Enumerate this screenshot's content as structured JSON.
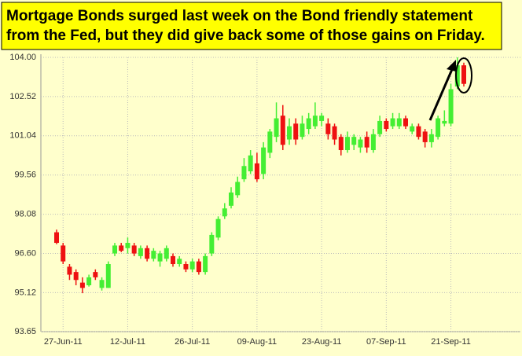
{
  "chart_data": {
    "type": "candlestick",
    "title": [
      "Mortgage Bonds surged last week on the Bond friendly statement",
      "from the Fed, but they did give back some of those gains on Friday."
    ],
    "categories": [
      null,
      "27-Jun-11",
      null,
      null,
      null,
      null,
      null,
      null,
      null,
      null,
      null,
      "12-Jul-11",
      null,
      null,
      null,
      null,
      null,
      null,
      null,
      null,
      null,
      "26-Jul-11",
      null,
      null,
      null,
      null,
      null,
      null,
      null,
      null,
      null,
      "09-Aug-11",
      null,
      null,
      null,
      null,
      null,
      null,
      null,
      null,
      null,
      "23-Aug-11",
      null,
      null,
      null,
      null,
      null,
      null,
      null,
      null,
      null,
      "07-Sep-11",
      null,
      null,
      null,
      null,
      null,
      null,
      null,
      null,
      null,
      "21-Sep-11",
      null,
      null
    ],
    "open": [
      97.4,
      96.9,
      96.1,
      95.9,
      95.5,
      95.4,
      95.9,
      95.3,
      95.3,
      96.6,
      96.9,
      96.8,
      96.9,
      96.5,
      96.8,
      96.4,
      96.3,
      96.4,
      96.5,
      96.2,
      96.2,
      96.0,
      96.3,
      95.9,
      96.6,
      97.2,
      98.0,
      98.4,
      98.8,
      99.4,
      99.7,
      100.0,
      99.6,
      100.4,
      101.0,
      101.8,
      100.9,
      101.5,
      101.0,
      101.3,
      101.4,
      101.6,
      101.5,
      101.4,
      101.0,
      100.5,
      100.7,
      100.6,
      101.0,
      100.5,
      101.1,
      101.6,
      101.4,
      101.4,
      101.7,
      101.2,
      101.4,
      101.2,
      100.8,
      101.0,
      101.5,
      101.5,
      102.9,
      103.7
    ],
    "high": [
      97.5,
      97.0,
      96.2,
      96.0,
      95.7,
      95.8,
      96.0,
      95.7,
      96.3,
      97.0,
      97.0,
      97.2,
      97.0,
      96.9,
      96.9,
      96.8,
      96.7,
      96.9,
      96.6,
      96.5,
      96.3,
      96.4,
      96.4,
      96.6,
      97.4,
      98.0,
      98.5,
      99.1,
      99.5,
      100.2,
      100.5,
      100.4,
      100.8,
      101.3,
      102.3,
      102.2,
      101.7,
      101.7,
      101.8,
      101.9,
      102.3,
      101.9,
      101.7,
      101.5,
      101.1,
      101.2,
      101.1,
      101.0,
      101.2,
      101.3,
      101.8,
      101.7,
      101.9,
      101.9,
      101.8,
      101.5,
      101.5,
      101.3,
      101.3,
      101.8,
      102.0,
      103.0,
      104.0,
      103.8
    ],
    "low": [
      96.95,
      96.2,
      95.6,
      95.4,
      95.1,
      95.35,
      95.6,
      95.2,
      95.3,
      96.5,
      96.65,
      96.6,
      96.5,
      96.4,
      96.3,
      96.3,
      96.1,
      96.3,
      96.1,
      96.1,
      95.9,
      95.9,
      95.8,
      95.8,
      96.5,
      97.1,
      97.9,
      98.3,
      98.7,
      99.3,
      99.6,
      99.3,
      99.4,
      100.2,
      100.8,
      100.5,
      100.7,
      100.7,
      100.9,
      101.1,
      101.3,
      101.4,
      100.9,
      100.7,
      100.3,
      100.4,
      100.5,
      100.4,
      100.4,
      100.4,
      101.0,
      101.2,
      101.3,
      101.3,
      101.3,
      101.1,
      100.9,
      100.6,
      100.6,
      100.9,
      101.4,
      101.4,
      102.8,
      102.9
    ],
    "close": [
      97.0,
      96.3,
      95.8,
      95.6,
      95.3,
      95.7,
      95.7,
      95.6,
      96.2,
      96.9,
      96.7,
      97.0,
      96.6,
      96.8,
      96.4,
      96.7,
      96.6,
      96.8,
      96.2,
      96.4,
      96.0,
      96.3,
      95.9,
      96.5,
      97.3,
      97.9,
      98.3,
      98.9,
      99.3,
      99.9,
      100.3,
      99.4,
      100.6,
      101.2,
      101.7,
      100.7,
      101.4,
      100.9,
      101.5,
      101.7,
      101.8,
      101.8,
      101.1,
      100.9,
      100.5,
      101.0,
      101.0,
      100.9,
      100.6,
      101.1,
      101.6,
      101.3,
      101.7,
      101.7,
      101.4,
      101.4,
      101.0,
      100.8,
      101.1,
      101.7,
      101.6,
      102.8,
      103.7,
      103.0
    ],
    "up_color": "#44ee33",
    "down_color": "#ee1111",
    "ylim": [
      93.65,
      104.0
    ],
    "yticks": [
      {
        "value": 93.65,
        "label": "93.65"
      },
      95.12,
      {
        "value": 96.6,
        "label": "96.60"
      },
      {
        "value": 98.08,
        "label": "98.08"
      },
      {
        "value": 99.56,
        "label": "99.56"
      },
      {
        "value": 101.04,
        "label": "101.04"
      },
      {
        "value": 102.52,
        "label": "102.52"
      },
      {
        "value": 104.0,
        "label": "104.00"
      }
    ],
    "grid": true
  }
}
